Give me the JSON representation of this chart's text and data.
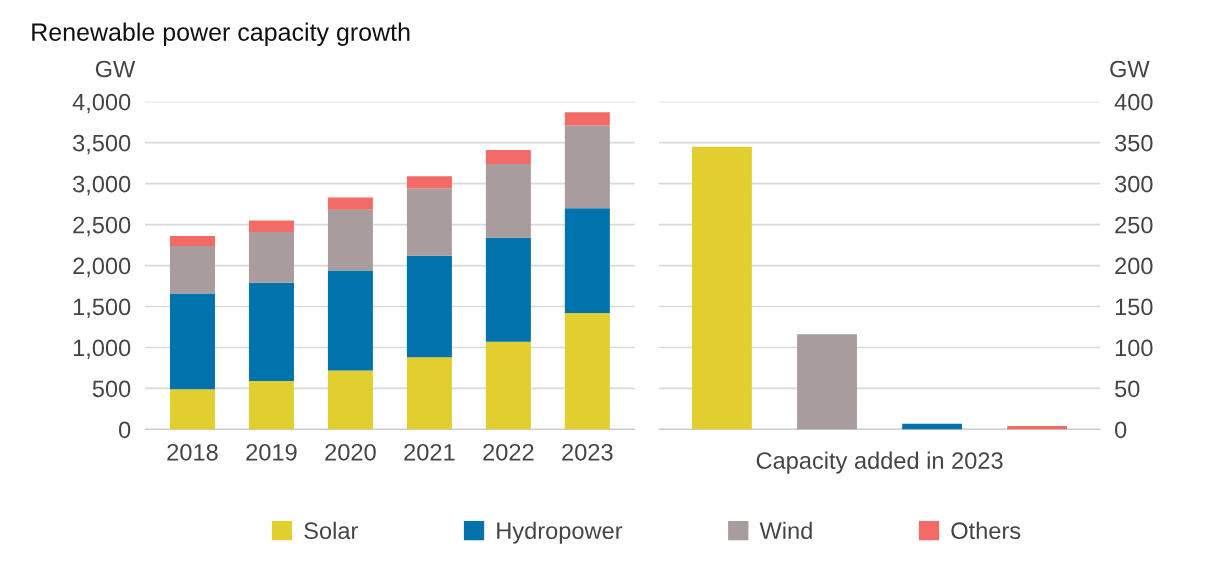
{
  "chart_data": [
    {
      "type": "bar",
      "title": "Renewable power capacity growth",
      "ylabel": "GW",
      "stacked": true,
      "grid": "y",
      "legend": "bottom",
      "categories": [
        "2018",
        "2019",
        "2020",
        "2021",
        "2022",
        "2023"
      ],
      "series": [
        {
          "name": "Solar",
          "color": "#e0cf2f",
          "values": [
            490,
            590,
            720,
            880,
            1070,
            1420
          ]
        },
        {
          "name": "Hydropower",
          "color": "#0072ac",
          "values": [
            1170,
            1200,
            1220,
            1240,
            1270,
            1280
          ]
        },
        {
          "name": "Wind",
          "color": "#a99c9d",
          "values": [
            580,
            620,
            740,
            820,
            900,
            1010
          ]
        },
        {
          "name": "Others",
          "color": "#f26b67",
          "values": [
            120,
            140,
            150,
            150,
            170,
            160
          ]
        }
      ],
      "ylim": [
        0,
        4000
      ],
      "yticks": [
        {
          "value": 0,
          "label": "0"
        },
        {
          "value": 500,
          "label": "500"
        },
        {
          "value": 1000,
          "label": "1,000"
        },
        {
          "value": 1500,
          "label": "1,500"
        },
        {
          "value": 2000,
          "label": "2,000"
        },
        {
          "value": 2500,
          "label": "2,500"
        },
        {
          "value": 3000,
          "label": "3,000"
        },
        {
          "value": 3500,
          "label": "3,500"
        },
        {
          "value": 4000,
          "label": "4,000"
        }
      ]
    },
    {
      "type": "bar",
      "ylabel": "GW",
      "xlabel": "Capacity added in 2023",
      "grid": "y",
      "categories": [
        null,
        null,
        null,
        null
      ],
      "values": [
        345,
        116,
        7,
        4
      ],
      "colors": [
        "#e0cf2f",
        "#a99c9d",
        "#0072ac",
        "#f26b67"
      ],
      "ylim": [
        0,
        400
      ],
      "yticks": [
        0,
        50,
        100,
        150,
        200,
        250,
        300,
        350,
        400
      ]
    }
  ]
}
